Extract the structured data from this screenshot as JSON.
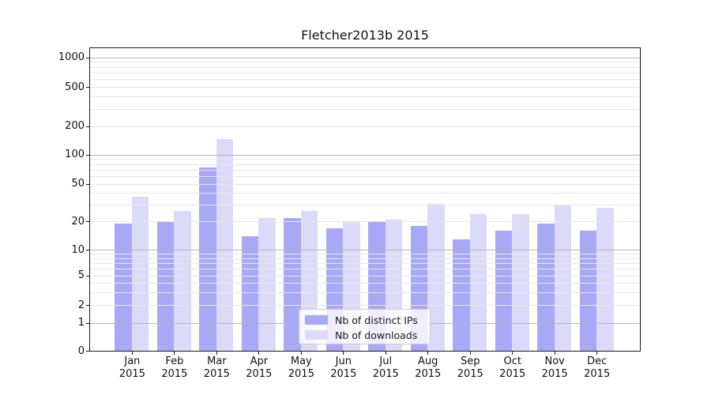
{
  "title": "Fletcher2013b 2015",
  "chart_data": {
    "type": "bar",
    "title": "Fletcher2013b 2015",
    "categories": [
      "Jan 2015",
      "Feb 2015",
      "Mar 2015",
      "Apr 2015",
      "May 2015",
      "Jun 2015",
      "Jul 2015",
      "Aug 2015",
      "Sep 2015",
      "Oct 2015",
      "Nov 2015",
      "Dec 2015"
    ],
    "x_tick_months": [
      "Jan",
      "Feb",
      "Mar",
      "Apr",
      "May",
      "Jun",
      "Jul",
      "Aug",
      "Sep",
      "Oct",
      "Nov",
      "Dec"
    ],
    "x_tick_year": "2015",
    "series": [
      {
        "name": "Nb of distinct IPs",
        "color": "#a8a8f6",
        "values": [
          19,
          20,
          75,
          14,
          22,
          17,
          20,
          18,
          13,
          16,
          19,
          16
        ]
      },
      {
        "name": "Nb of downloads",
        "color": "#dbdbf9",
        "values": [
          37,
          26,
          148,
          22,
          26,
          20,
          21,
          31,
          24,
          24,
          30,
          28
        ]
      }
    ],
    "y_axis": {
      "scale": "symlog",
      "tick_values": [
        0,
        1,
        2,
        5,
        10,
        20,
        50,
        100,
        200,
        500,
        1000
      ],
      "tick_labels": [
        "0",
        "1",
        "2",
        "5",
        "10",
        "20",
        "50",
        "100",
        "200",
        "500",
        "1000"
      ],
      "major_gridlines": [
        1,
        10,
        100,
        1000
      ],
      "minor_gridlines": [
        2,
        3,
        4,
        5,
        6,
        7,
        8,
        9,
        20,
        30,
        40,
        50,
        60,
        70,
        80,
        90,
        200,
        300,
        400,
        500,
        600,
        700,
        800,
        900
      ]
    },
    "grid": true,
    "legend_position": "lower center",
    "colors": {
      "distinct_ips_bar": "#a8a8f6",
      "downloads_bar": "#dbdbf9",
      "major_grid": "#b4b4b4",
      "minor_grid": "#e7e7e7",
      "axis": "#1a1a1a"
    }
  }
}
